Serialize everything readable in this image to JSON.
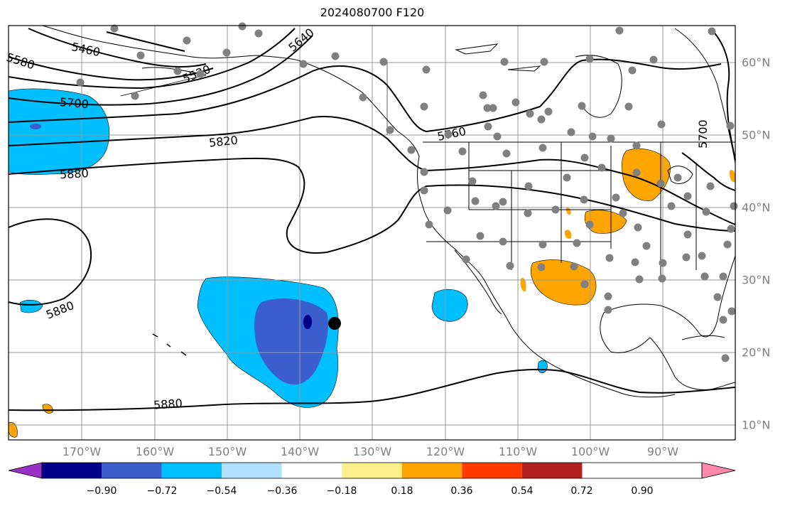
{
  "title": "2024080700 F120",
  "map": {
    "lon_labels": [
      "170°W",
      "160°W",
      "150°W",
      "140°W",
      "130°W",
      "120°W",
      "110°W",
      "100°W",
      "90°W"
    ],
    "lat_labels": [
      "60°N",
      "50°N",
      "40°N",
      "30°N",
      "20°N",
      "10°N"
    ],
    "contour_labels": [
      "5460",
      "5580",
      "5520",
      "5640",
      "5700",
      "5760",
      "5820",
      "5880",
      "5880",
      "5880",
      "5700"
    ],
    "marker": {
      "name": "observation-point",
      "lon": -135,
      "lat": 24
    }
  },
  "colorbar": {
    "tick_labels": [
      "−0.90",
      "−0.72",
      "−0.54",
      "−0.36",
      "−0.18",
      "0.18",
      "0.36",
      "0.54",
      "0.72",
      "0.90"
    ],
    "colors": [
      "#9b30c8",
      "#00008b",
      "#3a5fcd",
      "#00bfff",
      "#b0e2ff",
      "#ffffff",
      "#fff08c",
      "#ffa500",
      "#ff3a00",
      "#b22222",
      "#ff88aa"
    ]
  },
  "chart_data": {
    "type": "heatmap",
    "title": "2024080700 F120",
    "colorbar_levels": [
      -0.9,
      -0.72,
      -0.54,
      -0.36,
      -0.18,
      0.18,
      0.36,
      0.54,
      0.72,
      0.9
    ],
    "contour_values": [
      5460,
      5520,
      5580,
      5640,
      5700,
      5760,
      5820,
      5880
    ],
    "lon_range": [
      -180,
      -80
    ],
    "lat_range": [
      8,
      65
    ],
    "grid": true
  }
}
